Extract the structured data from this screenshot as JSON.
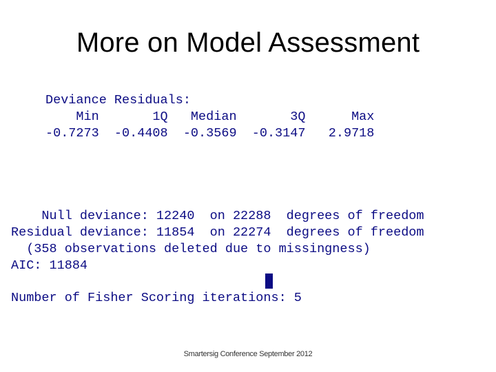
{
  "slide": {
    "title": "More on Model Assessment",
    "footer": "Smartersig Conference September 2012"
  },
  "console": {
    "deviance_residuals": {
      "header": "Deviance Residuals:",
      "labels_line": "    Min       1Q   Median       3Q      Max",
      "values_line": "-0.7273  -0.4408  -0.3569  -0.3147   2.9718"
    },
    "summary": {
      "null_deviance": "    Null deviance: 12240  on 22288  degrees of freedom",
      "residual_deviance": "Residual deviance: 11854  on 22274  degrees of freedom",
      "missingness": "  (358 observations deleted due to missingness)",
      "aic": "AIC: 11884",
      "fisher": "Number of Fisher Scoring iterations: 5"
    }
  }
}
